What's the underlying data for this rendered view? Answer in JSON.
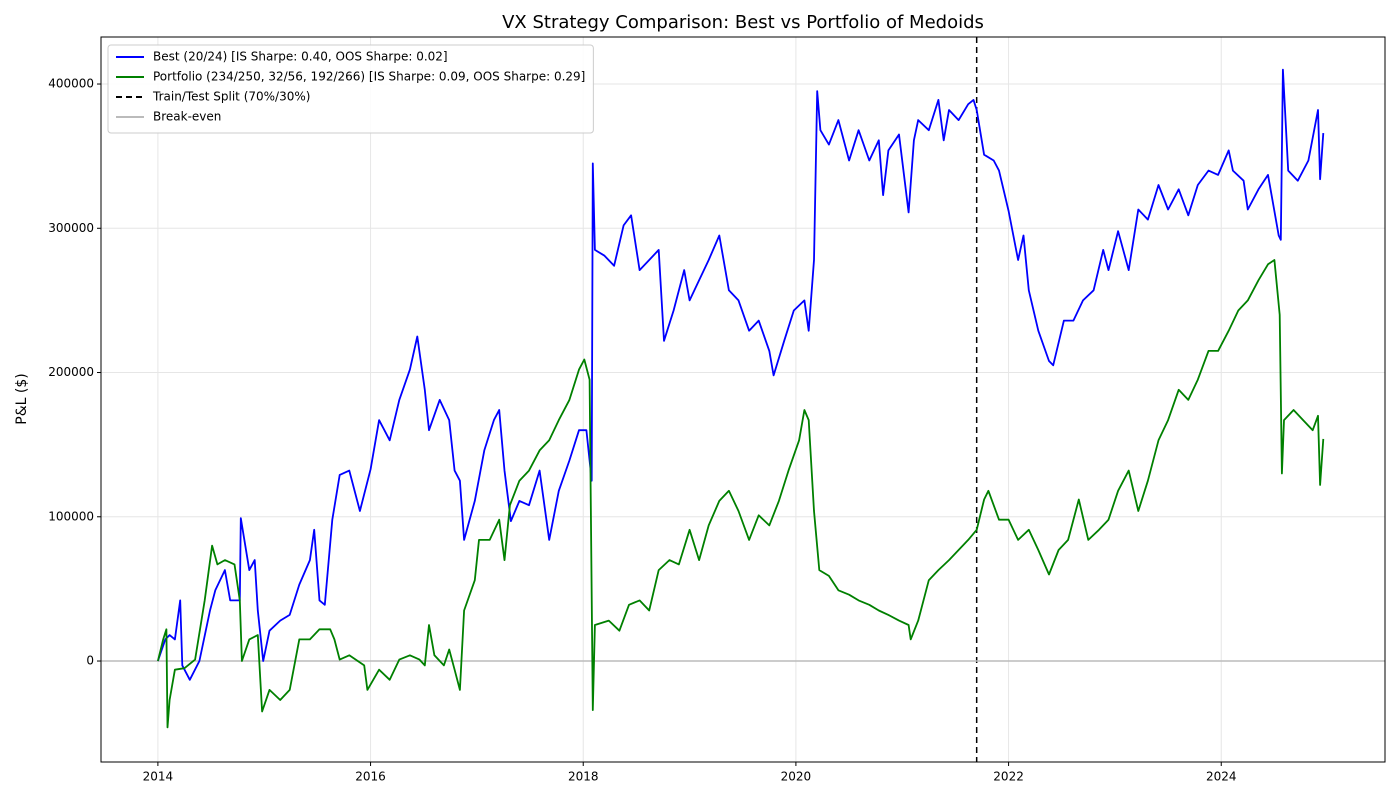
{
  "chart_data": {
    "type": "line",
    "title": "VX Strategy Comparison: Best vs Portfolio of Medoids",
    "y_label": "P&L ($)",
    "xlim": [
      2013.465,
      2025.54
    ],
    "xticks": [
      2014,
      2016,
      2018,
      2020,
      2022,
      2024
    ],
    "ylim": [
      -70000,
      432600
    ],
    "yticks": [
      0,
      100000,
      200000,
      300000,
      400000
    ],
    "grid": true,
    "legend": "upper left",
    "series": [
      {
        "name": "Best (20/24) [IS Sharpe: 0.40, OOS Sharpe: 0.02]",
        "color": "#0000ff",
        "x": [
          2014.0,
          2014.07,
          2014.11,
          2014.16,
          2014.21,
          2014.23,
          2014.3,
          2014.39,
          2014.49,
          2014.54,
          2014.63,
          2014.68,
          2014.77,
          2014.78,
          2014.86,
          2014.91,
          2014.94,
          2014.99,
          2015.05,
          2015.15,
          2015.24,
          2015.33,
          2015.43,
          2015.47,
          2015.52,
          2015.57,
          2015.64,
          2015.71,
          2015.8,
          2015.9,
          2016.0,
          2016.08,
          2016.18,
          2016.27,
          2016.37,
          2016.44,
          2016.51,
          2016.55,
          2016.65,
          2016.74,
          2016.79,
          2016.84,
          2016.88,
          2016.98,
          2017.07,
          2017.16,
          2017.21,
          2017.26,
          2017.32,
          2017.4,
          2017.49,
          2017.59,
          2017.68,
          2017.77,
          2017.87,
          2017.96,
          2018.03,
          2018.08,
          2018.09,
          2018.11,
          2018.2,
          2018.29,
          2018.38,
          2018.45,
          2018.53,
          2018.62,
          2018.71,
          2018.76,
          2018.85,
          2018.95,
          2019.0,
          2019.09,
          2019.18,
          2019.28,
          2019.37,
          2019.46,
          2019.56,
          2019.65,
          2019.75,
          2019.79,
          2019.89,
          2019.98,
          2020.08,
          2020.12,
          2020.17,
          2020.2,
          2020.23,
          2020.31,
          2020.4,
          2020.5,
          2020.59,
          2020.69,
          2020.78,
          2020.82,
          2020.87,
          2020.97,
          2021.06,
          2021.11,
          2021.15,
          2021.25,
          2021.34,
          2021.39,
          2021.44,
          2021.53,
          2021.62,
          2021.67,
          2021.7,
          2021.77,
          2021.86,
          2021.91,
          2022.0,
          2022.09,
          2022.14,
          2022.19,
          2022.28,
          2022.38,
          2022.42,
          2022.52,
          2022.61,
          2022.7,
          2022.8,
          2022.89,
          2022.94,
          2023.03,
          2023.13,
          2023.22,
          2023.31,
          2023.41,
          2023.5,
          2023.6,
          2023.69,
          2023.78,
          2023.88,
          2023.97,
          2024.07,
          2024.11,
          2024.21,
          2024.25,
          2024.35,
          2024.44,
          2024.54,
          2024.56,
          2024.58,
          2024.63,
          2024.72,
          2024.82,
          2024.91,
          2024.93,
          2024.96
        ],
        "values": [
          0,
          15000,
          18000,
          15000,
          42000,
          -3000,
          -13000,
          0,
          35000,
          49000,
          63000,
          42000,
          42000,
          99000,
          63000,
          70000,
          35000,
          0,
          21000,
          28000,
          32000,
          53000,
          70000,
          91000,
          42000,
          39000,
          98000,
          129000,
          132000,
          104000,
          133000,
          167000,
          153000,
          181000,
          202000,
          225000,
          188000,
          160000,
          181000,
          167000,
          132000,
          125000,
          84000,
          111000,
          146000,
          167000,
          174000,
          132000,
          97000,
          111000,
          108000,
          132000,
          84000,
          118000,
          139000,
          160000,
          160000,
          125000,
          345000,
          285000,
          281000,
          274000,
          302000,
          309000,
          271000,
          278000,
          285000,
          222000,
          243000,
          271000,
          250000,
          264000,
          278000,
          295000,
          257000,
          250000,
          229000,
          236000,
          215000,
          198000,
          222000,
          243000,
          250000,
          229000,
          278000,
          395000,
          368000,
          358000,
          375000,
          347000,
          368000,
          347000,
          361000,
          323000,
          354000,
          365000,
          311000,
          361000,
          375000,
          368000,
          389000,
          361000,
          382000,
          375000,
          386000,
          389000,
          382000,
          351000,
          347000,
          340000,
          312000,
          278000,
          295000,
          257000,
          229000,
          208000,
          205000,
          236000,
          236000,
          250000,
          257000,
          285000,
          271000,
          298000,
          271000,
          313000,
          306000,
          330000,
          313000,
          327000,
          309000,
          330000,
          340000,
          337000,
          354000,
          340000,
          333000,
          313000,
          327000,
          337000,
          295000,
          292000,
          410000,
          340000,
          333000,
          347000,
          382000,
          334000,
          366000
        ]
      },
      {
        "name": "Portfolio (234/250, 32/56, 192/266) [IS Sharpe: 0.09, OOS Sharpe: 0.29]",
        "color": "#008000",
        "x": [
          2014.0,
          2014.05,
          2014.08,
          2014.09,
          2014.11,
          2014.16,
          2014.25,
          2014.35,
          2014.44,
          2014.51,
          2014.56,
          2014.63,
          2014.72,
          2014.77,
          2014.79,
          2014.86,
          2014.94,
          2014.98,
          2015.05,
          2015.15,
          2015.24,
          2015.33,
          2015.43,
          2015.52,
          2015.62,
          2015.66,
          2015.71,
          2015.8,
          2015.94,
          2015.97,
          2016.08,
          2016.18,
          2016.27,
          2016.37,
          2016.46,
          2016.51,
          2016.55,
          2016.6,
          2016.69,
          2016.74,
          2016.79,
          2016.84,
          2016.88,
          2016.98,
          2017.02,
          2017.12,
          2017.21,
          2017.26,
          2017.31,
          2017.4,
          2017.49,
          2017.59,
          2017.68,
          2017.77,
          2017.87,
          2017.96,
          2018.01,
          2018.06,
          2018.09,
          2018.11,
          2018.24,
          2018.34,
          2018.43,
          2018.53,
          2018.62,
          2018.71,
          2018.81,
          2018.9,
          2019.0,
          2019.09,
          2019.18,
          2019.28,
          2019.37,
          2019.46,
          2019.56,
          2019.65,
          2019.75,
          2019.84,
          2019.93,
          2020.03,
          2020.08,
          2020.12,
          2020.17,
          2020.22,
          2020.31,
          2020.4,
          2020.5,
          2020.59,
          2020.69,
          2020.78,
          2020.87,
          2020.97,
          2021.06,
          2021.08,
          2021.15,
          2021.25,
          2021.34,
          2021.44,
          2021.53,
          2021.62,
          2021.7,
          2021.77,
          2021.81,
          2021.91,
          2022.0,
          2022.09,
          2022.19,
          2022.28,
          2022.38,
          2022.47,
          2022.56,
          2022.66,
          2022.75,
          2022.85,
          2022.94,
          2023.03,
          2023.13,
          2023.22,
          2023.31,
          2023.41,
          2023.5,
          2023.6,
          2023.69,
          2023.78,
          2023.88,
          2023.97,
          2024.07,
          2024.16,
          2024.25,
          2024.35,
          2024.44,
          2024.5,
          2024.55,
          2024.57,
          2024.59,
          2024.68,
          2024.77,
          2024.86,
          2024.91,
          2024.93,
          2024.96
        ],
        "values": [
          0,
          15000,
          22000,
          -46000,
          -27000,
          -6000,
          -5000,
          1000,
          42000,
          80000,
          67000,
          70000,
          67000,
          42000,
          0,
          15000,
          18000,
          -35000,
          -20000,
          -27000,
          -20000,
          15000,
          15000,
          22000,
          22000,
          15000,
          1000,
          4000,
          -3000,
          -20000,
          -6000,
          -13000,
          1000,
          4000,
          1000,
          -3000,
          25000,
          4000,
          -3000,
          8000,
          -6000,
          -20000,
          35000,
          56000,
          84000,
          84000,
          98000,
          70000,
          108000,
          125000,
          132000,
          146000,
          153000,
          167000,
          181000,
          202000,
          209000,
          195000,
          -34000,
          25000,
          28000,
          21000,
          39000,
          42000,
          35000,
          63000,
          70000,
          67000,
          91000,
          70000,
          94000,
          111000,
          118000,
          104000,
          84000,
          101000,
          94000,
          111000,
          132000,
          153000,
          174000,
          167000,
          104000,
          63000,
          59000,
          49000,
          46000,
          42000,
          39000,
          35000,
          32000,
          28000,
          25000,
          15000,
          28000,
          56000,
          63000,
          70000,
          77000,
          84000,
          91000,
          112000,
          118000,
          98000,
          98000,
          84000,
          91000,
          77000,
          60000,
          77000,
          84000,
          112000,
          84000,
          91000,
          98000,
          118000,
          132000,
          104000,
          125000,
          153000,
          167000,
          188000,
          181000,
          195000,
          215000,
          215000,
          229000,
          243000,
          250000,
          264000,
          275000,
          278000,
          240000,
          130000,
          167000,
          174000,
          167000,
          160000,
          170000,
          122000,
          154000
        ]
      }
    ],
    "reference_lines": [
      {
        "name": "Train/Test Split (70%/30%)",
        "x": 2021.7,
        "color": "#000000",
        "style": "dashed"
      },
      {
        "name": "Break-even",
        "y": 0,
        "color": "#bbbbbb",
        "style": "solid"
      }
    ]
  }
}
